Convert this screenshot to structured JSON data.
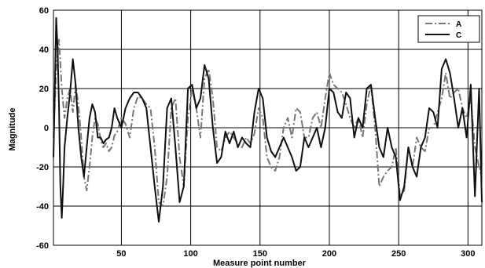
{
  "chart_data": {
    "type": "line",
    "title": "",
    "xlabel": "Measure point number",
    "ylabel": "Magnitude",
    "xlim": [
      1,
      310
    ],
    "ylim": [
      -60,
      60
    ],
    "x_ticks": [
      50,
      100,
      150,
      200,
      250,
      300
    ],
    "y_ticks": [
      -60,
      -40,
      -20,
      0,
      20,
      40,
      60
    ],
    "grid": true,
    "legend_position": "top-right",
    "series": [
      {
        "name": "A",
        "style": "dash-dot",
        "color": "#777777",
        "x": [
          1,
          3,
          5,
          7,
          9,
          11,
          13,
          15,
          17,
          19,
          21,
          23,
          25,
          27,
          29,
          31,
          33,
          35,
          37,
          39,
          41,
          43,
          45,
          47,
          50,
          53,
          56,
          59,
          62,
          65,
          68,
          71,
          74,
          77,
          80,
          83,
          86,
          89,
          92,
          95,
          98,
          101,
          104,
          107,
          110,
          113,
          116,
          119,
          122,
          125,
          128,
          131,
          134,
          137,
          140,
          143,
          146,
          149,
          152,
          155,
          158,
          161,
          164,
          167,
          170,
          173,
          176,
          179,
          182,
          185,
          188,
          191,
          194,
          197,
          200,
          203,
          206,
          209,
          212,
          215,
          218,
          221,
          224,
          227,
          230,
          233,
          236,
          239,
          242,
          245,
          248,
          251,
          254,
          257,
          260,
          263,
          266,
          269,
          272,
          275,
          278,
          281,
          284,
          287,
          290,
          293,
          296,
          299,
          302,
          305,
          308,
          310
        ],
        "values": [
          -5,
          30,
          45,
          20,
          5,
          15,
          20,
          8,
          22,
          12,
          -5,
          -25,
          -32,
          -20,
          -5,
          5,
          2,
          -6,
          -10,
          -8,
          -12,
          -10,
          -4,
          -2,
          5,
          2,
          -5,
          10,
          16,
          15,
          12,
          10,
          -10,
          -38,
          -40,
          -25,
          10,
          15,
          -15,
          -30,
          5,
          20,
          10,
          -5,
          25,
          30,
          15,
          -10,
          -12,
          -5,
          -2,
          -5,
          -8,
          -10,
          -5,
          -8,
          -3,
          10,
          5,
          -15,
          -20,
          -22,
          -15,
          0,
          5,
          -5,
          10,
          8,
          -5,
          -5,
          5,
          8,
          0,
          15,
          28,
          22,
          20,
          18,
          12,
          5,
          0,
          5,
          -5,
          12,
          22,
          0,
          -30,
          -25,
          -22,
          -20,
          -10,
          -35,
          -32,
          -10,
          -20,
          -5,
          -10,
          -12,
          0,
          0,
          8,
          15,
          28,
          15,
          18,
          20,
          10,
          5,
          15,
          -10,
          -20,
          -25
        ]
      },
      {
        "name": "C",
        "style": "solid",
        "color": "#111111",
        "x": [
          1,
          2,
          3,
          4,
          5,
          6,
          7,
          8,
          9,
          11,
          13,
          15,
          17,
          19,
          21,
          23,
          25,
          27,
          29,
          31,
          33,
          35,
          37,
          39,
          41,
          43,
          45,
          47,
          50,
          53,
          56,
          59,
          62,
          65,
          68,
          71,
          74,
          77,
          80,
          83,
          86,
          89,
          92,
          95,
          98,
          101,
          104,
          107,
          110,
          113,
          116,
          119,
          122,
          125,
          128,
          131,
          134,
          137,
          140,
          143,
          146,
          149,
          152,
          155,
          158,
          161,
          164,
          167,
          170,
          173,
          176,
          179,
          182,
          185,
          188,
          191,
          194,
          197,
          200,
          203,
          206,
          209,
          212,
          215,
          218,
          221,
          224,
          227,
          230,
          233,
          236,
          239,
          242,
          245,
          248,
          251,
          254,
          257,
          260,
          263,
          266,
          269,
          272,
          275,
          278,
          281,
          284,
          287,
          290,
          293,
          296,
          299,
          302,
          305,
          308,
          310
        ],
        "values": [
          -15,
          20,
          56,
          40,
          10,
          -30,
          -46,
          -30,
          -10,
          5,
          18,
          35,
          22,
          0,
          -15,
          -25,
          -10,
          5,
          12,
          8,
          -5,
          -5,
          -8,
          -6,
          -5,
          0,
          10,
          5,
          0,
          10,
          15,
          18,
          18,
          15,
          10,
          -10,
          -30,
          -48,
          -30,
          10,
          15,
          -10,
          -38,
          -30,
          20,
          22,
          10,
          15,
          32,
          25,
          0,
          -18,
          -15,
          -2,
          -8,
          -2,
          -10,
          -5,
          -8,
          -10,
          8,
          20,
          15,
          -5,
          -12,
          -15,
          -10,
          -5,
          -10,
          -15,
          -22,
          -20,
          -5,
          -10,
          -5,
          0,
          -10,
          0,
          20,
          18,
          8,
          5,
          18,
          15,
          -5,
          5,
          0,
          20,
          22,
          5,
          -10,
          -15,
          0,
          -10,
          -15,
          -37,
          -30,
          -10,
          -20,
          -25,
          -10,
          -5,
          10,
          8,
          0,
          30,
          35,
          28,
          15,
          0,
          10,
          -5,
          22,
          -35,
          20,
          -38
        ]
      }
    ]
  }
}
